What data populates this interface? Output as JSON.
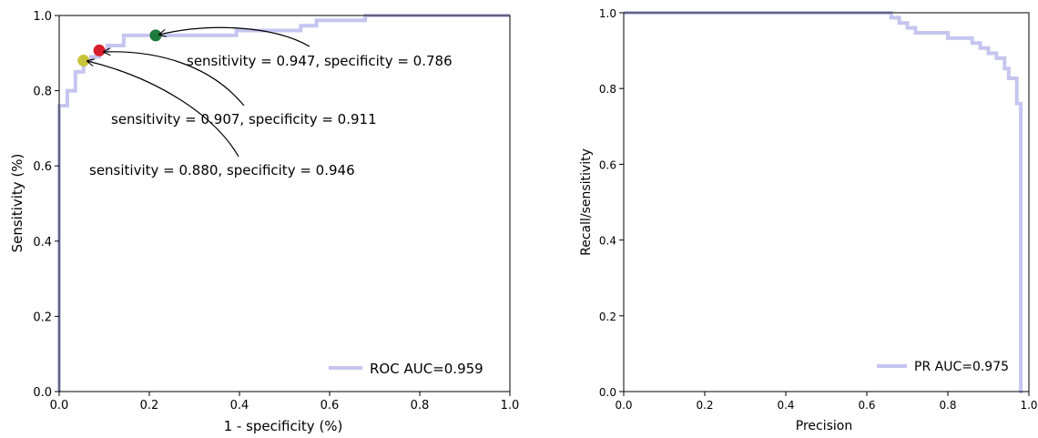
{
  "chart_data": [
    {
      "type": "line",
      "xlabel": "1 - specificity (%)",
      "ylabel": "Sensitivity (%)",
      "xlim": [
        0.0,
        1.0
      ],
      "ylim": [
        0.0,
        1.0
      ],
      "xticks": [
        "0.0",
        "0.2",
        "0.4",
        "0.6",
        "0.8",
        "1.0"
      ],
      "yticks": [
        "0.0",
        "0.2",
        "0.4",
        "0.6",
        "0.8",
        "1.0"
      ],
      "grid": false,
      "legend_position": "lower-right",
      "series": [
        {
          "name": "ROC AUC=0.959",
          "color": "#c5c5f0",
          "style": "step",
          "x": [
            0.0,
            0.0,
            0.018,
            0.018,
            0.036,
            0.036,
            0.054,
            0.054,
            0.071,
            0.071,
            0.089,
            0.089,
            0.107,
            0.107,
            0.143,
            0.143,
            0.214,
            0.214,
            0.393,
            0.393,
            0.536,
            0.536,
            0.571,
            0.571,
            0.679,
            0.679,
            1.0
          ],
          "y": [
            0.0,
            0.76,
            0.76,
            0.8,
            0.8,
            0.85,
            0.85,
            0.88,
            0.88,
            0.89,
            0.89,
            0.907,
            0.907,
            0.92,
            0.92,
            0.947,
            0.947,
            0.947,
            0.947,
            0.96,
            0.96,
            0.973,
            0.973,
            0.987,
            0.987,
            1.0,
            1.0
          ]
        }
      ],
      "points": [
        {
          "x": 0.214,
          "y": 0.947,
          "color": "#1e7a3c",
          "label": "sensitivity = 0.947, specificity = 0.786"
        },
        {
          "x": 0.089,
          "y": 0.907,
          "color": "#d81e2b",
          "label": "sensitivity = 0.907, specificity = 0.911"
        },
        {
          "x": 0.054,
          "y": 0.88,
          "color": "#c7c43a",
          "label": "sensitivity = 0.880, specificity = 0.946"
        }
      ]
    },
    {
      "type": "line",
      "xlabel": "Precision",
      "ylabel": "Recall/sensitivity",
      "xlim": [
        0.0,
        1.0
      ],
      "ylim": [
        0.0,
        1.0
      ],
      "xticks": [
        "0.0",
        "0.2",
        "0.4",
        "0.6",
        "0.8",
        "1.0"
      ],
      "yticks": [
        "0.0",
        "0.2",
        "0.4",
        "0.6",
        "0.8",
        "1.0"
      ],
      "grid": false,
      "legend_position": "lower-right",
      "series": [
        {
          "name": "PR AUC=0.975",
          "color": "#c5c5f0",
          "style": "step",
          "x": [
            0.0,
            0.66,
            0.66,
            0.68,
            0.68,
            0.7,
            0.7,
            0.72,
            0.72,
            0.74,
            0.74,
            0.76,
            0.76,
            0.8,
            0.8,
            0.86,
            0.86,
            0.88,
            0.88,
            0.9,
            0.9,
            0.92,
            0.92,
            0.94,
            0.94,
            0.95,
            0.95,
            0.97,
            0.97,
            0.98,
            0.98,
            0.985,
            0.985
          ],
          "y": [
            1.0,
            1.0,
            0.987,
            0.987,
            0.973,
            0.973,
            0.96,
            0.96,
            0.947,
            0.947,
            0.947,
            0.947,
            0.947,
            0.947,
            0.933,
            0.933,
            0.92,
            0.92,
            0.907,
            0.907,
            0.893,
            0.893,
            0.88,
            0.88,
            0.853,
            0.853,
            0.827,
            0.827,
            0.76,
            0.76,
            0.0,
            0.0,
            0.0
          ]
        }
      ]
    }
  ]
}
